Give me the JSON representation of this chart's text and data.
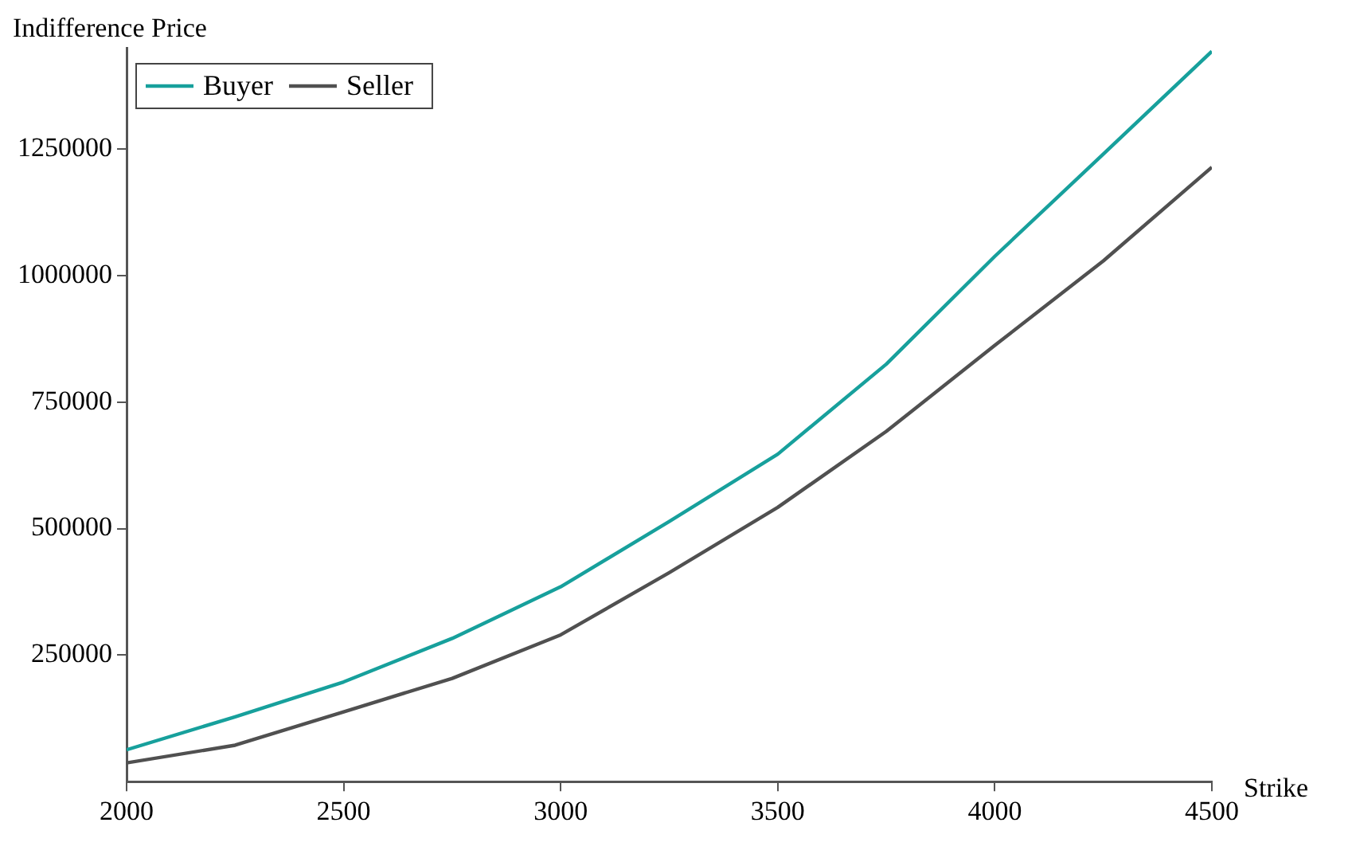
{
  "chart_data": {
    "type": "line",
    "xlabel": "Strike",
    "ylabel": "Indifference Price",
    "x": [
      2000,
      2250,
      2500,
      2750,
      3000,
      3250,
      3500,
      3750,
      4000,
      4250,
      4500
    ],
    "series": [
      {
        "name": "Buyer",
        "color": "#17a09c",
        "values": [
          63000,
          128000,
          197000,
          283000,
          385000,
          514000,
          647000,
          825000,
          1038000,
          1240000,
          1443000
        ]
      },
      {
        "name": "Seller",
        "color": "#505050",
        "values": [
          37000,
          72000,
          138000,
          204000,
          290000,
          413000,
          542000,
          692000,
          862000,
          1029000,
          1214000
        ]
      }
    ],
    "xlim": [
      2000,
      4500
    ],
    "xticks": [
      2000,
      2500,
      3000,
      3500,
      4000,
      4500
    ],
    "ylim": [
      0,
      1450000
    ],
    "yticks": [
      250000,
      500000,
      750000,
      1000000,
      1250000
    ],
    "grid": false,
    "legend": "top left",
    "marker": "none",
    "line_style": "solid"
  }
}
